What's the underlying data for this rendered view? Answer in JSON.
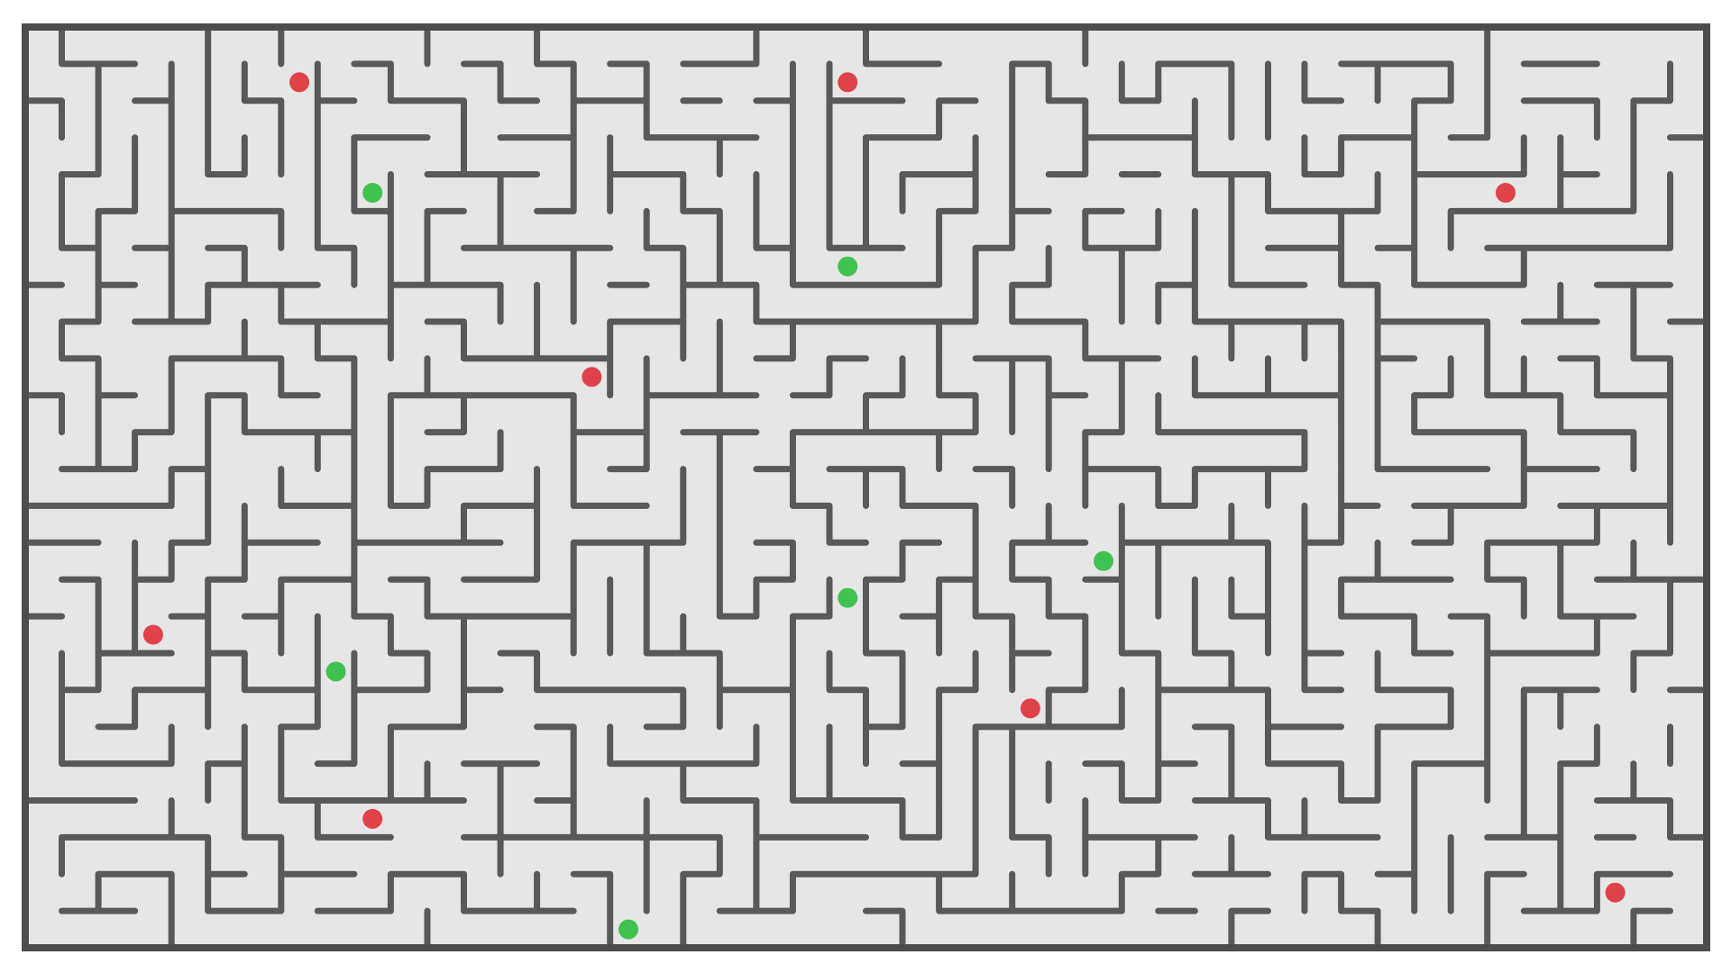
{
  "maze": {
    "cols": 46,
    "rows": 25,
    "seed": 1987,
    "floor_color": "#e6e6e6",
    "wall_color": "#595959",
    "border_color": "#4d4d4d",
    "page_color": "#ffffff"
  },
  "dots": {
    "red_color": "#e0424a",
    "green_color": "#3fc24f",
    "red": [
      {
        "col": 7,
        "row": 1
      },
      {
        "col": 22,
        "row": 1
      },
      {
        "col": 40,
        "row": 4
      },
      {
        "col": 15,
        "row": 9
      },
      {
        "col": 3,
        "row": 16
      },
      {
        "col": 27,
        "row": 18
      },
      {
        "col": 9,
        "row": 21
      },
      {
        "col": 43,
        "row": 23
      }
    ],
    "green": [
      {
        "col": 9,
        "row": 4
      },
      {
        "col": 22,
        "row": 6
      },
      {
        "col": 29,
        "row": 14
      },
      {
        "col": 22,
        "row": 15
      },
      {
        "col": 8,
        "row": 17
      },
      {
        "col": 16,
        "row": 24
      }
    ]
  }
}
